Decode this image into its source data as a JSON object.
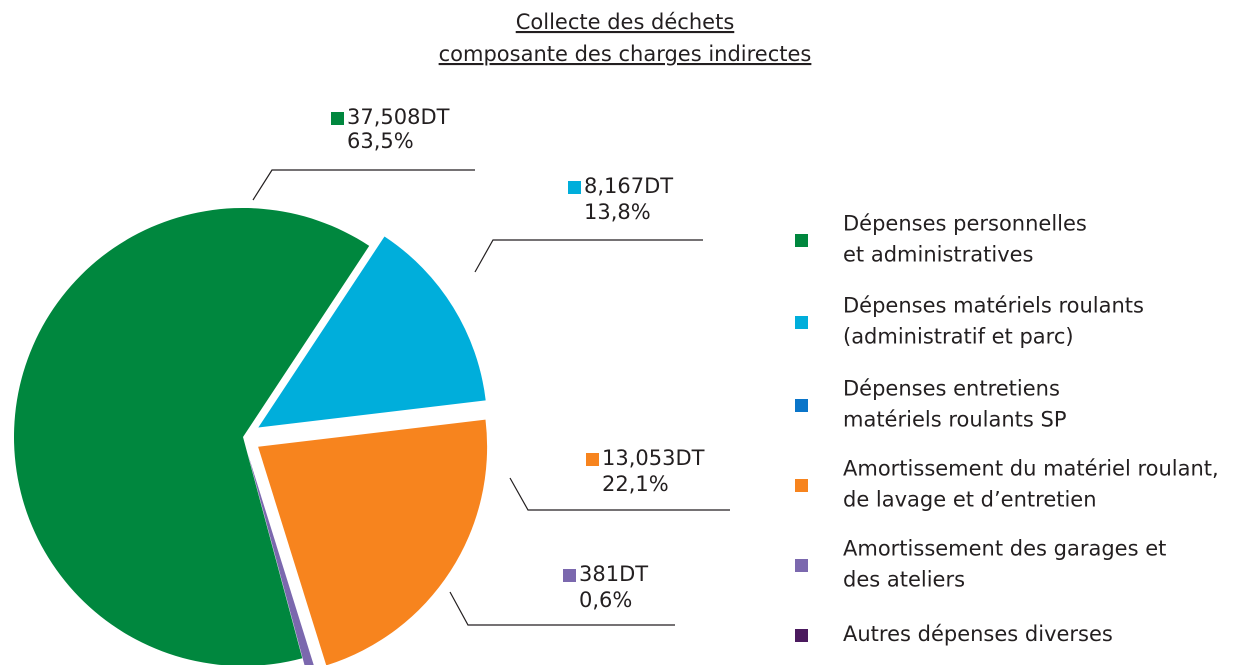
{
  "chart_data": {
    "type": "pie",
    "title": [
      "Collecte des déchets ",
      "composante des charges indirectes"
    ],
    "categories": [
      [
        "Dépenses personnelles",
        "et administratives"
      ],
      [
        "Dépenses matériels roulants",
        "(administratif et parc)"
      ],
      [
        "Dépenses entretiens",
        "matériels roulants SP"
      ],
      [
        "Amortissement du matériel roulant,",
        "de lavage et d’entretien"
      ],
      [
        "Amortissement des garages et",
        "des ateliers"
      ],
      [
        "Autres dépenses diverses"
      ]
    ],
    "values": [
      37508,
      8167,
      0,
      13053,
      381,
      0
    ],
    "value_labels": [
      "37,508DT",
      "8,167DT",
      null,
      "13,053DT",
      "381DT",
      null
    ],
    "percent_labels": [
      "63,5%",
      "13,8%",
      null,
      "22,1%",
      "0,6%",
      null
    ],
    "colors": [
      "#00873e",
      "#00aedb",
      "#0a75c9",
      "#f7841e",
      "#7b68ae",
      "#4b1a5e"
    ]
  }
}
